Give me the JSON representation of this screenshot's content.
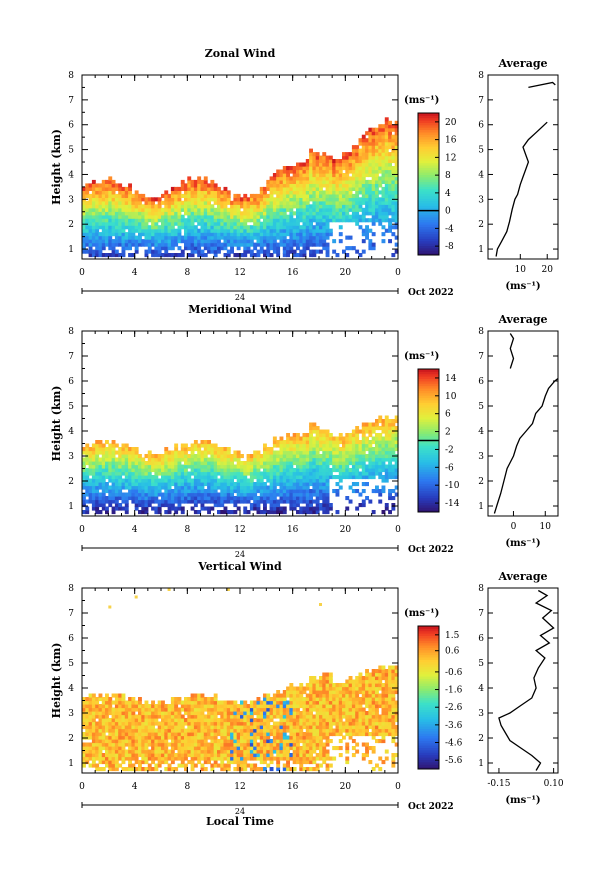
{
  "chart_data": [
    {
      "type": "heatmap",
      "title": "Zonal Wind",
      "ylabel": "Height (km)",
      "xlabel": "",
      "x_ticks": [
        "0",
        "4",
        "8",
        "12",
        "16",
        "20",
        "0"
      ],
      "y_ticks": [
        "1",
        "2",
        "3",
        "4",
        "5",
        "6",
        "7",
        "8"
      ],
      "xlim": [
        0,
        24
      ],
      "ylim": [
        0.6,
        8.0
      ],
      "date_tick": "24",
      "date_label": "Oct 2022",
      "colorbar": {
        "unit": "(ms⁻¹)",
        "labels": [
          "20",
          "16",
          "12",
          "8",
          "4",
          "0",
          "-4",
          "-8"
        ],
        "range": [
          -10,
          22
        ],
        "zero_line": 0
      },
      "profile": {
        "title": "Average",
        "x_ticks": [
          "10",
          "20"
        ],
        "xlim": [
          -2,
          24
        ],
        "xunit": "(ms⁻¹)",
        "points": [
          [
            1,
            0.7
          ],
          [
            1.5,
            1.0
          ],
          [
            3,
            1.3
          ],
          [
            5,
            1.7
          ],
          [
            6,
            2.1
          ],
          [
            7,
            2.6
          ],
          [
            8,
            3.0
          ],
          [
            9,
            3.2
          ],
          [
            10,
            3.6
          ],
          [
            11,
            3.9
          ],
          [
            12,
            4.2
          ],
          [
            13,
            4.5
          ],
          [
            12,
            4.8
          ],
          [
            11,
            5.1
          ],
          [
            13,
            5.4
          ],
          [
            16,
            5.7
          ],
          [
            19,
            6.0
          ],
          [
            20,
            6.1
          ]
        ],
        "points_high": [
          [
            13,
            7.5
          ],
          [
            22,
            7.7
          ],
          [
            23,
            7.6
          ]
        ]
      },
      "field": {
        "top_base": 3.4,
        "top_amp": 0.35,
        "top_rise": 2.4,
        "vmin": -6,
        "vmax": 20
      }
    },
    {
      "type": "heatmap",
      "title": "Meridional Wind",
      "ylabel": "Height (km)",
      "xlabel": "",
      "x_ticks": [
        "0",
        "4",
        "8",
        "12",
        "16",
        "20",
        "0"
      ],
      "y_ticks": [
        "1",
        "2",
        "3",
        "4",
        "5",
        "6",
        "7",
        "8"
      ],
      "xlim": [
        0,
        24
      ],
      "ylim": [
        0.6,
        8.0
      ],
      "date_tick": "24",
      "date_label": "Oct 2022",
      "colorbar": {
        "unit": "(ms⁻¹)",
        "labels": [
          "14",
          "10",
          "6",
          "2",
          "-2",
          "-6",
          "-10",
          "-14"
        ],
        "range": [
          -16,
          16
        ],
        "zero_line": 0
      },
      "profile": {
        "title": "Average",
        "x_ticks": [
          "0",
          "10"
        ],
        "xlim": [
          -8,
          14
        ],
        "xunit": "(ms⁻¹)",
        "points": [
          [
            -6,
            0.7
          ],
          [
            -5,
            1.1
          ],
          [
            -4,
            1.5
          ],
          [
            -3,
            2.0
          ],
          [
            -2,
            2.5
          ],
          [
            0,
            3.0
          ],
          [
            1,
            3.4
          ],
          [
            2,
            3.7
          ],
          [
            4,
            4.0
          ],
          [
            6,
            4.3
          ],
          [
            7,
            4.7
          ],
          [
            9,
            5.0
          ],
          [
            10,
            5.4
          ],
          [
            11,
            5.7
          ],
          [
            13,
            6.0
          ],
          [
            14,
            6.1
          ]
        ],
        "points_high": [
          [
            -1,
            6.5
          ],
          [
            0,
            6.9
          ],
          [
            -1,
            7.3
          ],
          [
            0,
            7.7
          ],
          [
            -1,
            7.9
          ]
        ]
      },
      "field": {
        "top_base": 3.3,
        "top_amp": 0.25,
        "top_rise": 1.0,
        "vmin": -14,
        "vmax": 10
      }
    },
    {
      "type": "heatmap",
      "title": "Vertical Wind",
      "ylabel": "Height (km)",
      "xlabel": "Local Time",
      "x_ticks": [
        "0",
        "4",
        "8",
        "12",
        "16",
        "20",
        "0"
      ],
      "y_ticks": [
        "1",
        "2",
        "3",
        "4",
        "5",
        "6",
        "7",
        "8"
      ],
      "xlim": [
        0,
        24
      ],
      "ylim": [
        0.6,
        8.0
      ],
      "date_tick": "24",
      "date_label": "Oct 2022",
      "colorbar": {
        "unit": "(ms⁻¹)",
        "labels": [
          "1.5",
          "0.6",
          "-0.6",
          "-1.6",
          "-2.6",
          "-3.6",
          "-4.6",
          "-5.6"
        ],
        "range": [
          -6.1,
          2.0
        ],
        "zero_line": null
      },
      "profile": {
        "title": "Average",
        "x_ticks": [
          "-0.15",
          "0.10"
        ],
        "xlim": [
          -0.2,
          0.12
        ],
        "xunit": "(ms⁻¹)",
        "points": [
          [
            0.02,
            0.7
          ],
          [
            0.04,
            1.0
          ],
          [
            0.0,
            1.3
          ],
          [
            -0.05,
            1.6
          ],
          [
            -0.1,
            1.9
          ],
          [
            -0.12,
            2.2
          ],
          [
            -0.14,
            2.5
          ],
          [
            -0.15,
            2.8
          ],
          [
            -0.1,
            3.0
          ],
          [
            -0.05,
            3.3
          ],
          [
            0.0,
            3.6
          ],
          [
            0.02,
            4.0
          ],
          [
            0.01,
            4.4
          ],
          [
            0.03,
            4.8
          ],
          [
            0.06,
            5.2
          ],
          [
            0.02,
            5.5
          ],
          [
            0.08,
            5.8
          ],
          [
            0.04,
            6.1
          ],
          [
            0.1,
            6.4
          ],
          [
            0.05,
            6.8
          ],
          [
            0.09,
            7.1
          ],
          [
            0.02,
            7.4
          ],
          [
            0.07,
            7.7
          ],
          [
            0.03,
            7.9
          ]
        ]
      },
      "field": {
        "top_base": 3.5,
        "top_amp": 0.15,
        "top_rise": 1.2,
        "vmin": -1.2,
        "vmax": 1.5
      }
    }
  ]
}
